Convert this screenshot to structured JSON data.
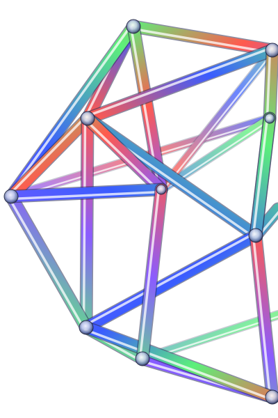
{
  "image": {
    "subject": "icosahedron-wireframe",
    "background_color": "#ffffff",
    "palette": {
      "blue": "#3a5cff",
      "violet": "#8a5cff",
      "green": "#5cf07a",
      "red": "#ff5a4e",
      "silver": "#e8ecf4",
      "white": "#ffffff"
    }
  }
}
